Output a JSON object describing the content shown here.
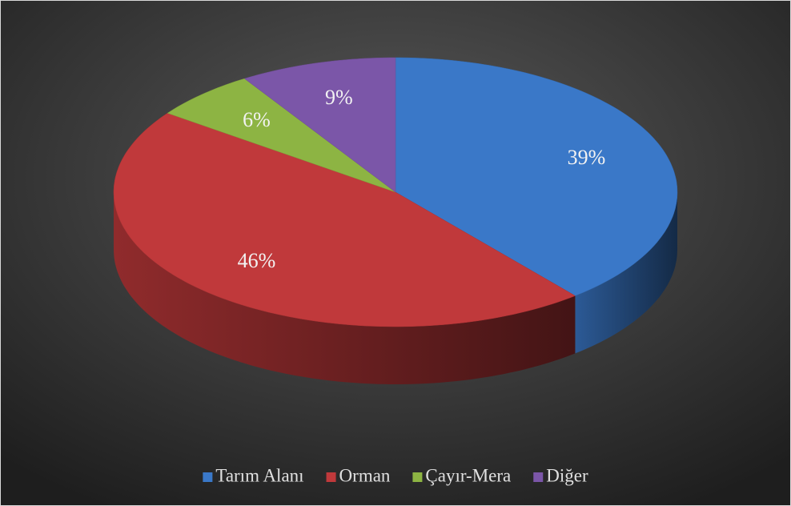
{
  "chart_data": {
    "type": "pie",
    "categories": [
      "Tarım Alanı",
      "Orman",
      "Çayır-Mera",
      "Diğer"
    ],
    "values": [
      39,
      46,
      6,
      9
    ],
    "value_labels": [
      "39%",
      "46%",
      "6%",
      "9%"
    ],
    "colors": [
      "#3a78c8",
      "#c0393b",
      "#8db443",
      "#7b56a8"
    ],
    "legend": "bottom"
  }
}
